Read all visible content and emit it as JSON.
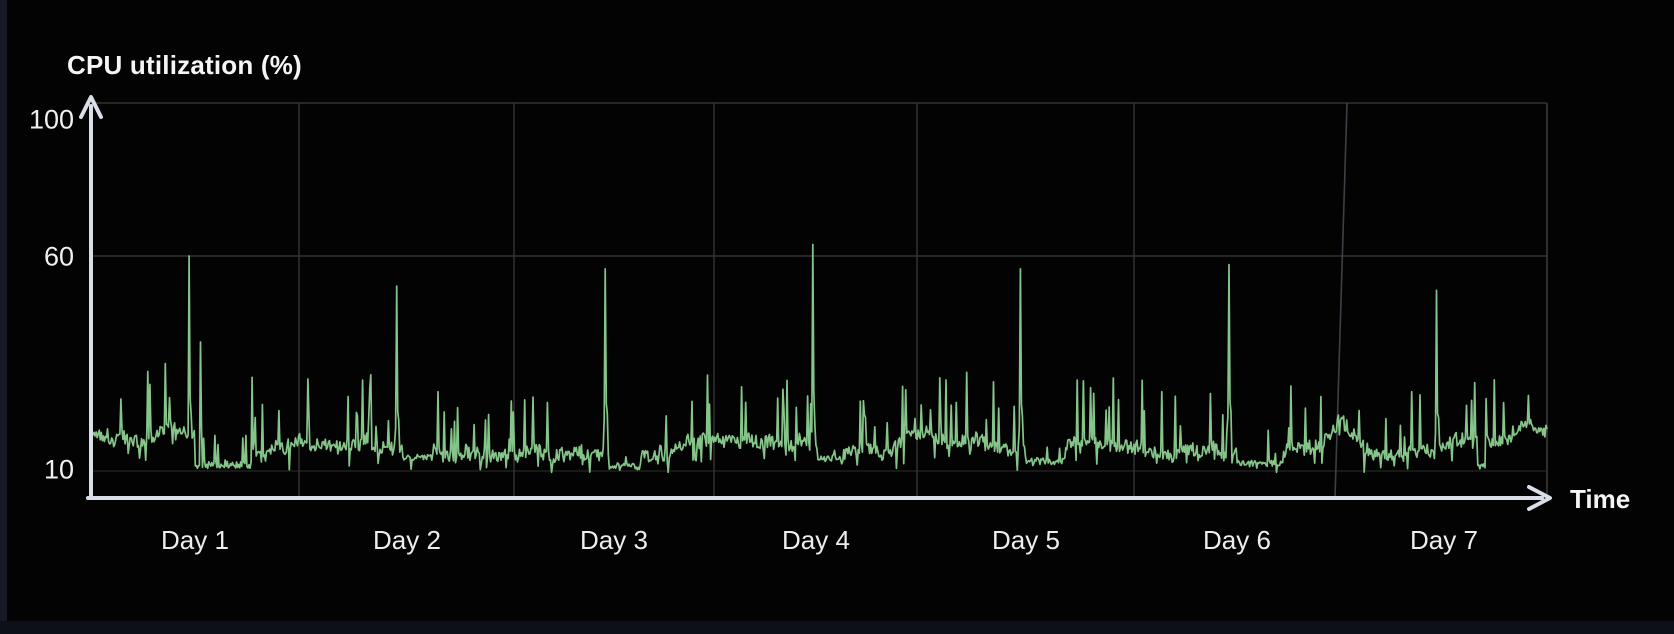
{
  "window": {
    "background": "#030303",
    "desktop_edge_color": "#151a26"
  },
  "colors": {
    "grid": "#333333",
    "grid_faint": "#252525",
    "grid_slant": "#3d4046",
    "axis": "#d9dee8",
    "text": "#f2f2f2",
    "series": "#85c589",
    "background": "#030303"
  },
  "chart_data": {
    "type": "line",
    "title": "CPU utilization (%)",
    "xlabel": "Time",
    "x_categories": [
      "Day 1",
      "Day 2",
      "Day 3",
      "Day 4",
      "Day 5",
      "Day 6",
      "Day 7"
    ],
    "y_ticks": [
      100,
      60,
      10
    ],
    "y_tick_labels": [
      "100",
      "60",
      "10"
    ],
    "ylim": [
      0,
      100
    ],
    "grid": true,
    "legend": false,
    "series": [
      {
        "name": "CPU utilization",
        "color": "#85c589",
        "baseline_typical_pct": [
          12,
          20
        ],
        "minor_spike_pct": [
          22,
          36
        ],
        "daily_peak_values": [
          60,
          53,
          57,
          63,
          57,
          58,
          52
        ],
        "daily_peak_time_fraction": 0.47,
        "post_peak_dip_pct": 10.5
      }
    ],
    "render": {
      "seed": 1337,
      "n_points": 1410,
      "baseline": {
        "start": 16,
        "min": 13.5,
        "max": 17.5,
        "walk": 1.1,
        "jitter": 3.2
      },
      "minor_spikes": {
        "prob": 0.085,
        "min": 5,
        "max": 16
      },
      "daily_peaks": [
        60,
        53,
        57,
        63,
        57,
        58,
        52
      ],
      "peak_frac": 0.47,
      "extra_spikes": [
        {
          "frac": 0.051,
          "value": 35
        },
        {
          "frac": 0.075,
          "value": 40
        }
      ],
      "dips": [
        {
          "s": 0.071,
          "e": 0.11,
          "l": 10.6
        },
        {
          "s": 0.214,
          "e": 0.235,
          "l": 12.5
        },
        {
          "s": 0.356,
          "e": 0.378,
          "l": 10.3
        },
        {
          "s": 0.499,
          "e": 0.517,
          "l": 12.5
        },
        {
          "s": 0.642,
          "e": 0.669,
          "l": 11.5
        },
        {
          "s": 0.787,
          "e": 0.818,
          "l": 11.0
        },
        {
          "s": 0.952,
          "e": 0.958,
          "l": 10.5
        }
      ],
      "humps": [
        {
          "c": 0.012,
          "w": 25,
          "a": 3.0
        },
        {
          "c": 0.058,
          "w": 26,
          "a": 4.5
        },
        {
          "c": 0.575,
          "w": 18,
          "a": 3.0
        },
        {
          "c": 0.858,
          "w": 11,
          "a": 7.0
        },
        {
          "c": 0.988,
          "w": 18,
          "a": 4.0
        }
      ]
    }
  }
}
